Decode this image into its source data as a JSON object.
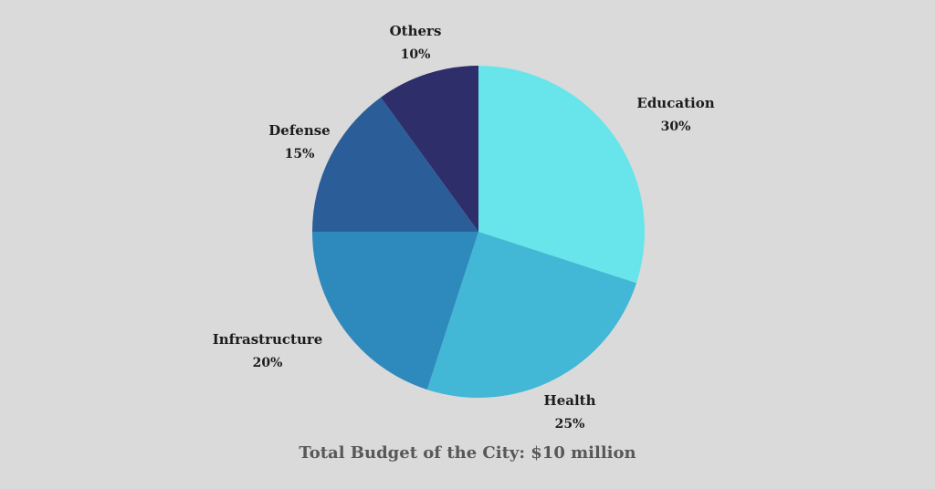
{
  "chart_data": {
    "type": "pie",
    "title": "",
    "caption": "Total Budget of the City: $10 million",
    "slices": [
      {
        "label": "Education",
        "value": 30,
        "display": "30%",
        "color": "#68e5ea"
      },
      {
        "label": "Health",
        "value": 25,
        "display": "25%",
        "color": "#42b8d6"
      },
      {
        "label": "Infrastructure",
        "value": 20,
        "display": "20%",
        "color": "#2e8abd"
      },
      {
        "label": "Defense",
        "value": 15,
        "display": "15%",
        "color": "#2b5e98"
      },
      {
        "label": "Others",
        "value": 10,
        "display": "10%",
        "color": "#2e2e6b"
      }
    ],
    "start": "12 o'clock",
    "direction": "clockwise"
  },
  "colors": {
    "background": "#dadada",
    "label_text": "#1c1c1c",
    "caption_text": "#585858"
  }
}
